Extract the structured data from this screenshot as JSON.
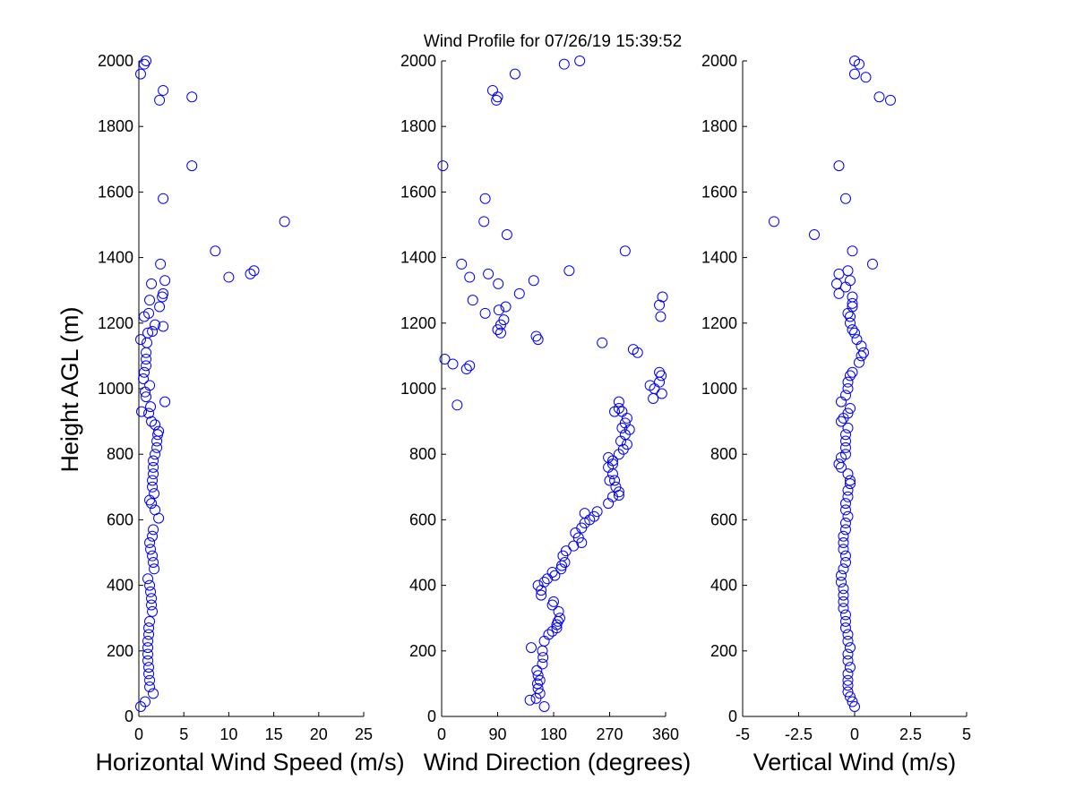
{
  "figure": {
    "title": "Wind Profile for  07/26/19 15:39:52",
    "ylabel": "Height AGL (m)"
  },
  "chart_data": [
    {
      "type": "scatter",
      "title": "Wind Profile for  07/26/19 15:39:52",
      "xlabel": "Horizontal Wind Speed (m/s)",
      "ylabel": "Height AGL (m)",
      "xlim": [
        0,
        25
      ],
      "ylim": [
        0,
        2000
      ],
      "xticks": [
        0,
        5,
        10,
        15,
        20,
        25
      ],
      "xtick_labels": [
        "0",
        "5",
        "10",
        "15",
        "20",
        "25"
      ],
      "yticks": [
        0,
        200,
        400,
        600,
        800,
        1000,
        1200,
        1400,
        1600,
        1800,
        2000
      ],
      "ytick_labels": [
        "0",
        "200",
        "400",
        "600",
        "800",
        "1000",
        "1200",
        "1400",
        "1600",
        "1800",
        "2000"
      ],
      "marker": "o",
      "color": "#0000ff",
      "points": [
        [
          0.2,
          30
        ],
        [
          0.7,
          45
        ],
        [
          1.6,
          70
        ],
        [
          1.2,
          90
        ],
        [
          1.2,
          110
        ],
        [
          1.1,
          130
        ],
        [
          1.1,
          150
        ],
        [
          1.0,
          170
        ],
        [
          1.0,
          190
        ],
        [
          1.0,
          210
        ],
        [
          1.0,
          230
        ],
        [
          1.1,
          250
        ],
        [
          1.1,
          270
        ],
        [
          1.2,
          290
        ],
        [
          1.5,
          320
        ],
        [
          1.4,
          340
        ],
        [
          1.4,
          360
        ],
        [
          1.3,
          380
        ],
        [
          1.2,
          400
        ],
        [
          1.0,
          420
        ],
        [
          1.7,
          450
        ],
        [
          1.6,
          470
        ],
        [
          1.5,
          490
        ],
        [
          1.3,
          510
        ],
        [
          1.2,
          530
        ],
        [
          1.5,
          550
        ],
        [
          1.6,
          570
        ],
        [
          2.2,
          605
        ],
        [
          1.8,
          630
        ],
        [
          1.4,
          650
        ],
        [
          1.2,
          660
        ],
        [
          1.7,
          680
        ],
        [
          1.5,
          700
        ],
        [
          1.5,
          720
        ],
        [
          1.6,
          740
        ],
        [
          1.6,
          760
        ],
        [
          1.6,
          780
        ],
        [
          1.8,
          800
        ],
        [
          2.0,
          820
        ],
        [
          2.0,
          840
        ],
        [
          2.1,
          860
        ],
        [
          2.2,
          870
        ],
        [
          1.8,
          890
        ],
        [
          1.4,
          900
        ],
        [
          1.1,
          925
        ],
        [
          0.3,
          930
        ],
        [
          1.3,
          945
        ],
        [
          2.9,
          960
        ],
        [
          0.8,
          975
        ],
        [
          0.7,
          990
        ],
        [
          1.2,
          1010
        ],
        [
          0.5,
          1030
        ],
        [
          0.6,
          1050
        ],
        [
          0.8,
          1070
        ],
        [
          0.8,
          1090
        ],
        [
          0.8,
          1110
        ],
        [
          0.9,
          1140
        ],
        [
          0.2,
          1150
        ],
        [
          1.0,
          1170
        ],
        [
          1.5,
          1175
        ],
        [
          2.7,
          1190
        ],
        [
          1.8,
          1195
        ],
        [
          0.6,
          1220
        ],
        [
          1.1,
          1230
        ],
        [
          2.3,
          1250
        ],
        [
          1.2,
          1270
        ],
        [
          2.6,
          1280
        ],
        [
          2.7,
          1290
        ],
        [
          1.4,
          1320
        ],
        [
          2.9,
          1330
        ],
        [
          12.4,
          1350
        ],
        [
          12.8,
          1360
        ],
        [
          2.4,
          1380
        ],
        [
          10.0,
          1340
        ],
        [
          8.5,
          1420
        ],
        [
          16.2,
          1510
        ],
        [
          2.7,
          1580
        ],
        [
          5.9,
          1680
        ],
        [
          5.9,
          1890
        ],
        [
          2.7,
          1910
        ],
        [
          2.3,
          1880
        ],
        [
          0.2,
          1960
        ],
        [
          0.6,
          1990
        ],
        [
          0.8,
          2000
        ]
      ]
    },
    {
      "type": "scatter",
      "title": "",
      "xlabel": "Wind Direction (degrees)",
      "ylabel": "",
      "xlim": [
        0,
        360
      ],
      "ylim": [
        0,
        2000
      ],
      "xticks": [
        0,
        90,
        180,
        270,
        360
      ],
      "xtick_labels": [
        "0",
        "90",
        "180",
        "270",
        "360"
      ],
      "yticks": [
        0,
        200,
        400,
        600,
        800,
        1000,
        1200,
        1400,
        1600,
        1800,
        2000
      ],
      "ytick_labels": [
        "0",
        "200",
        "400",
        "600",
        "800",
        "1000",
        "1200",
        "1400",
        "1600",
        "1800",
        "2000"
      ],
      "marker": "o",
      "color": "#0000ff",
      "points": [
        [
          165,
          30
        ],
        [
          142,
          50
        ],
        [
          152,
          55
        ],
        [
          158,
          70
        ],
        [
          155,
          85
        ],
        [
          154,
          100
        ],
        [
          158,
          110
        ],
        [
          155,
          125
        ],
        [
          153,
          140
        ],
        [
          162,
          160
        ],
        [
          163,
          180
        ],
        [
          162,
          200
        ],
        [
          144,
          210
        ],
        [
          165,
          230
        ],
        [
          172,
          250
        ],
        [
          178,
          260
        ],
        [
          185,
          270
        ],
        [
          185,
          280
        ],
        [
          187,
          290
        ],
        [
          190,
          300
        ],
        [
          188,
          320
        ],
        [
          178,
          340
        ],
        [
          180,
          350
        ],
        [
          160,
          370
        ],
        [
          160,
          385
        ],
        [
          155,
          400
        ],
        [
          165,
          410
        ],
        [
          170,
          420
        ],
        [
          182,
          430
        ],
        [
          178,
          440
        ],
        [
          192,
          450
        ],
        [
          193,
          460
        ],
        [
          198,
          470
        ],
        [
          195,
          490
        ],
        [
          200,
          505
        ],
        [
          212,
          520
        ],
        [
          225,
          530
        ],
        [
          220,
          545
        ],
        [
          215,
          560
        ],
        [
          225,
          575
        ],
        [
          230,
          590
        ],
        [
          238,
          600
        ],
        [
          245,
          610
        ],
        [
          250,
          625
        ],
        [
          230,
          620
        ],
        [
          268,
          650
        ],
        [
          275,
          670
        ],
        [
          285,
          675
        ],
        [
          285,
          685
        ],
        [
          280,
          700
        ],
        [
          278,
          720
        ],
        [
          270,
          720
        ],
        [
          275,
          740
        ],
        [
          268,
          760
        ],
        [
          275,
          770
        ],
        [
          275,
          780
        ],
        [
          268,
          790
        ],
        [
          285,
          800
        ],
        [
          292,
          815
        ],
        [
          298,
          830
        ],
        [
          288,
          840
        ],
        [
          295,
          860
        ],
        [
          302,
          875
        ],
        [
          290,
          880
        ],
        [
          295,
          895
        ],
        [
          298,
          910
        ],
        [
          290,
          930
        ],
        [
          278,
          930
        ],
        [
          285,
          940
        ],
        [
          285,
          960
        ],
        [
          25,
          950
        ],
        [
          340,
          970
        ],
        [
          354,
          985
        ],
        [
          342,
          1000
        ],
        [
          335,
          1010
        ],
        [
          350,
          1020
        ],
        [
          353,
          1040
        ],
        [
          350,
          1050
        ],
        [
          40,
          1060
        ],
        [
          45,
          1070
        ],
        [
          18,
          1075
        ],
        [
          5,
          1090
        ],
        [
          315,
          1110
        ],
        [
          308,
          1120
        ],
        [
          258,
          1140
        ],
        [
          155,
          1150
        ],
        [
          152,
          1160
        ],
        [
          95,
          1170
        ],
        [
          90,
          1180
        ],
        [
          95,
          1195
        ],
        [
          100,
          1210
        ],
        [
          92,
          1240
        ],
        [
          103,
          1250
        ],
        [
          70,
          1230
        ],
        [
          352,
          1220
        ],
        [
          350,
          1255
        ],
        [
          355,
          1280
        ],
        [
          125,
          1290
        ],
        [
          50,
          1270
        ],
        [
          91,
          1320
        ],
        [
          148,
          1330
        ],
        [
          45,
          1340
        ],
        [
          75,
          1350
        ],
        [
          205,
          1360
        ],
        [
          32,
          1380
        ],
        [
          295,
          1420
        ],
        [
          105,
          1470
        ],
        [
          68,
          1510
        ],
        [
          70,
          1580
        ],
        [
          2,
          1680
        ],
        [
          88,
          1880
        ],
        [
          90,
          1890
        ],
        [
          82,
          1910
        ],
        [
          118,
          1960
        ],
        [
          197,
          1990
        ],
        [
          222,
          2000
        ]
      ]
    },
    {
      "type": "scatter",
      "title": "",
      "xlabel": "Vertical Wind (m/s)",
      "ylabel": "",
      "xlim": [
        -5,
        5
      ],
      "ylim": [
        0,
        2000
      ],
      "xticks": [
        -5,
        -2.5,
        0,
        2.5,
        5
      ],
      "xtick_labels": [
        "-5",
        "-2.5",
        "0",
        "2.5",
        "5"
      ],
      "yticks": [
        0,
        200,
        400,
        600,
        800,
        1000,
        1200,
        1400,
        1600,
        1800,
        2000
      ],
      "ytick_labels": [
        "0",
        "200",
        "400",
        "600",
        "800",
        "1000",
        "1200",
        "1400",
        "1600",
        "1800",
        "2000"
      ],
      "marker": "o",
      "color": "#0000ff",
      "points": [
        [
          0.0,
          30
        ],
        [
          -0.1,
          45
        ],
        [
          -0.2,
          60
        ],
        [
          -0.3,
          75
        ],
        [
          -0.3,
          95
        ],
        [
          -0.3,
          110
        ],
        [
          -0.3,
          130
        ],
        [
          -0.2,
          150
        ],
        [
          -0.3,
          170
        ],
        [
          -0.3,
          190
        ],
        [
          -0.2,
          210
        ],
        [
          -0.3,
          230
        ],
        [
          -0.3,
          250
        ],
        [
          -0.4,
          270
        ],
        [
          -0.4,
          290
        ],
        [
          -0.4,
          310
        ],
        [
          -0.5,
          330
        ],
        [
          -0.5,
          350
        ],
        [
          -0.5,
          370
        ],
        [
          -0.5,
          390
        ],
        [
          -0.6,
          410
        ],
        [
          -0.6,
          430
        ],
        [
          -0.5,
          450
        ],
        [
          -0.4,
          470
        ],
        [
          -0.4,
          490
        ],
        [
          -0.5,
          510
        ],
        [
          -0.5,
          530
        ],
        [
          -0.5,
          550
        ],
        [
          -0.4,
          570
        ],
        [
          -0.4,
          590
        ],
        [
          -0.3,
          610
        ],
        [
          -0.4,
          630
        ],
        [
          -0.4,
          650
        ],
        [
          -0.3,
          670
        ],
        [
          -0.3,
          690
        ],
        [
          -0.2,
          710
        ],
        [
          -0.2,
          720
        ],
        [
          -0.3,
          740
        ],
        [
          -0.6,
          760
        ],
        [
          -0.7,
          770
        ],
        [
          -0.6,
          790
        ],
        [
          -0.4,
          800
        ],
        [
          -0.4,
          820
        ],
        [
          -0.4,
          840
        ],
        [
          -0.4,
          860
        ],
        [
          -0.3,
          880
        ],
        [
          -0.6,
          900
        ],
        [
          -0.5,
          910
        ],
        [
          -0.3,
          925
        ],
        [
          -0.2,
          940
        ],
        [
          -0.6,
          960
        ],
        [
          -0.4,
          980
        ],
        [
          -0.3,
          1000
        ],
        [
          -0.3,
          1020
        ],
        [
          -0.2,
          1040
        ],
        [
          -0.1,
          1050
        ],
        [
          0.2,
          1080
        ],
        [
          0.3,
          1100
        ],
        [
          0.4,
          1110
        ],
        [
          0.3,
          1130
        ],
        [
          0.1,
          1150
        ],
        [
          0.0,
          1170
        ],
        [
          -0.1,
          1180
        ],
        [
          -0.2,
          1200
        ],
        [
          -0.2,
          1220
        ],
        [
          -0.3,
          1230
        ],
        [
          -0.1,
          1250
        ],
        [
          -0.1,
          1260
        ],
        [
          -0.1,
          1280
        ],
        [
          -0.4,
          1310
        ],
        [
          -0.7,
          1290
        ],
        [
          -0.8,
          1320
        ],
        [
          -0.7,
          1350
        ],
        [
          -0.3,
          1360
        ],
        [
          -0.2,
          1330
        ],
        [
          0.8,
          1380
        ],
        [
          -0.1,
          1420
        ],
        [
          -1.8,
          1470
        ],
        [
          -3.6,
          1510
        ],
        [
          -0.4,
          1580
        ],
        [
          -0.7,
          1680
        ],
        [
          1.1,
          1890
        ],
        [
          1.6,
          1880
        ],
        [
          0.0,
          1960
        ],
        [
          0.5,
          1950
        ],
        [
          0.2,
          1990
        ],
        [
          0.0,
          2000
        ]
      ]
    }
  ]
}
